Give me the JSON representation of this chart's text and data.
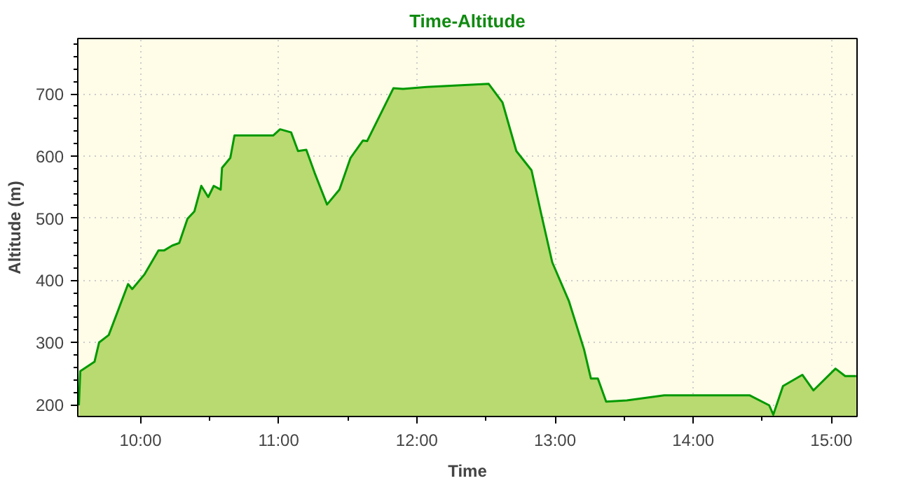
{
  "chart_data": {
    "type": "area",
    "title": "Time-Altitude",
    "xlabel": "Time",
    "ylabel": "Altitude (m)",
    "x": [
      9.554,
      9.564,
      9.667,
      9.7,
      9.77,
      9.91,
      9.94,
      10.03,
      10.13,
      10.17,
      10.23,
      10.28,
      10.34,
      10.39,
      10.44,
      10.49,
      10.53,
      10.58,
      10.59,
      10.65,
      10.68,
      10.96,
      11.01,
      11.09,
      11.14,
      11.2,
      11.26,
      11.35,
      11.44,
      11.52,
      11.61,
      11.64,
      11.83,
      11.9,
      12.07,
      12.52,
      12.62,
      12.72,
      12.83,
      12.9,
      12.98,
      13.1,
      13.21,
      13.26,
      13.31,
      13.37,
      13.52,
      13.79,
      14.41,
      14.55,
      14.58,
      14.65,
      14.79,
      14.87,
      15.03,
      15.1,
      15.18
    ],
    "series": [
      {
        "color": "#009900",
        "values": [
          199,
          254,
          269,
          300,
          312,
          394,
          386,
          410,
          448,
          448,
          456,
          460,
          499,
          511,
          552,
          534,
          552,
          546,
          581,
          597,
          633,
          633,
          643,
          638,
          608,
          610,
          573,
          522,
          546,
          597,
          625,
          624,
          709,
          708,
          711,
          716,
          686,
          608,
          577,
          507,
          429,
          367,
          289,
          242,
          242,
          205,
          207,
          215,
          215,
          199,
          184,
          230,
          248,
          223,
          258,
          246,
          246
        ]
      }
    ],
    "xlim": [
      9.546,
      15.186
    ],
    "ylim": [
      181,
      789
    ],
    "xticks": [
      {
        "value": 10,
        "label": "10:00"
      },
      {
        "value": 11,
        "label": "11:00"
      },
      {
        "value": 12,
        "label": "12:00"
      },
      {
        "value": 13,
        "label": "13:00"
      },
      {
        "value": 14,
        "label": "14:00"
      },
      {
        "value": 15,
        "label": "15:00"
      }
    ],
    "yticks": [
      200,
      300,
      400,
      500,
      600,
      700
    ],
    "grid": true,
    "line_style": "solid"
  }
}
